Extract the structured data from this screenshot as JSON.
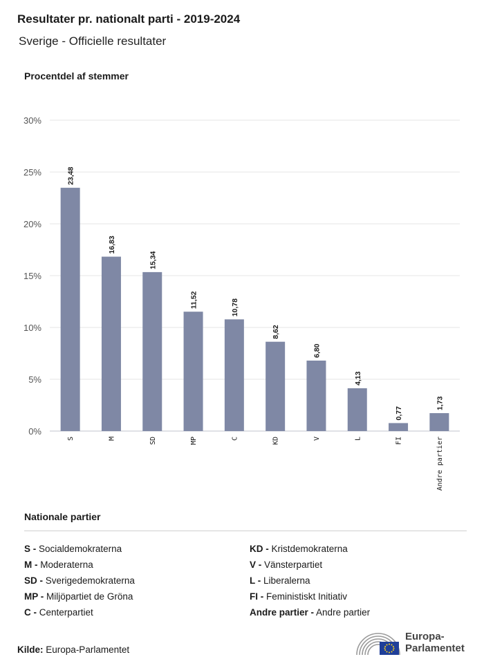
{
  "header": {
    "title": "Resultater pr. nationalt parti - 2019-2024",
    "subtitle": "Sverige - Officielle resultater",
    "y_axis_title": "Procentdel af stemmer"
  },
  "chart_data": {
    "type": "bar",
    "categories": [
      "S",
      "M",
      "SD",
      "MP",
      "C",
      "KD",
      "V",
      "L",
      "FI",
      "Andre partier"
    ],
    "values": [
      23.48,
      16.83,
      15.34,
      11.52,
      10.78,
      8.62,
      6.8,
      4.13,
      0.77,
      1.73
    ],
    "value_labels": [
      "23,48",
      "16,83",
      "15,34",
      "11,52",
      "10,78",
      "8,62",
      "6,80",
      "4,13",
      "0,77",
      "1,73"
    ],
    "ylabel": "Procentdel af stemmer",
    "ylim": [
      0,
      30
    ],
    "yticks": [
      0,
      5,
      10,
      15,
      20,
      25,
      30
    ],
    "ytick_labels": [
      "0%",
      "5%",
      "10%",
      "15%",
      "20%",
      "25%",
      "30%"
    ],
    "grid": true,
    "bar_color": "#7f88a5"
  },
  "legend": {
    "title": "Nationale partier",
    "left": [
      {
        "abbr": "S -",
        "name": "Socialdemokraterna"
      },
      {
        "abbr": "M -",
        "name": "Moderaterna"
      },
      {
        "abbr": "SD -",
        "name": "Sverigedemokraterna"
      },
      {
        "abbr": "MP -",
        "name": "Miljöpartiet de Gröna"
      },
      {
        "abbr": "C -",
        "name": "Centerpartiet"
      }
    ],
    "right": [
      {
        "abbr": "KD -",
        "name": "Kristdemokraterna"
      },
      {
        "abbr": "V -",
        "name": "Vänsterpartiet"
      },
      {
        "abbr": "L -",
        "name": "Liberalerna"
      },
      {
        "abbr": "FI -",
        "name": "Feministiskt Initiativ"
      },
      {
        "abbr": "Andre partier -",
        "name": "Andre partier"
      }
    ]
  },
  "footer": {
    "source_label": "Kilde:",
    "source_value": "Europa-Parlamentet",
    "logo_line1": "Europa-",
    "logo_line2": "Parlamentet"
  }
}
